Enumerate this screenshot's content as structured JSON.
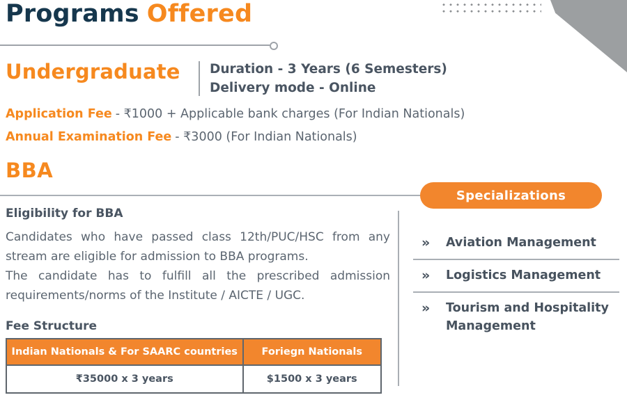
{
  "page": {
    "title_part1": "Programs",
    "title_part2": "Offered"
  },
  "undergraduate": {
    "heading": "Undergraduate",
    "duration_line1": "Duration - 3 Years (6 Semesters)",
    "duration_line2": "Delivery mode - Online",
    "application_fee_label": "Application Fee",
    "application_fee_value": "- ₹1000 + Applicable bank charges (For Indian Nationals)",
    "exam_fee_label": "Annual Examination Fee",
    "exam_fee_value": "- ₹3000 (For Indian Nationals)"
  },
  "program": {
    "name": "BBA",
    "eligibility_heading": "Eligibility for BBA",
    "eligibility_p1": "Candidates who have passed class 12th/PUC/HSC from any stream are eligible for admission to BBA programs.",
    "eligibility_p2": "The candidate has to fulfill all the prescribed admission requirements/norms of the Institute / AICTE / UGC.",
    "fee_structure_heading": "Fee Structure",
    "fee_table": {
      "headers": [
        "Indian Nationals & For SAARC countries",
        "Foriegn Nationals"
      ],
      "rows": [
        [
          "₹35000 x 3 years",
          "$1500 x 3 years"
        ]
      ]
    }
  },
  "specializations": {
    "button_label": "Specializations",
    "bullet": "»",
    "items": [
      "Aviation Management",
      "Logistics Management",
      "Tourism and Hospitality Management"
    ]
  },
  "colors": {
    "accent_orange_text": "#f6891f",
    "accent_orange_fill": "#f2862d",
    "title_navy": "#16374d",
    "body_text": "#5b6570",
    "dark_text": "#4a5562",
    "line_gray": "#9ea3a9",
    "corner_gray": "#9c9fa1"
  }
}
